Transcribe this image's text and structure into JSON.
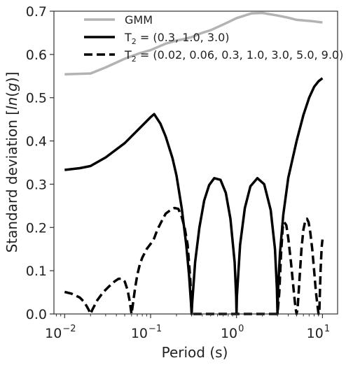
{
  "chart_data": {
    "type": "line",
    "xscale": "log",
    "xlabel": "Period (s)",
    "ylabel": "Standard deviation [ln(g)]",
    "xlim": [
      0.0075,
      15
    ],
    "ylim": [
      0,
      0.7
    ],
    "x_ticks": [
      {
        "value": 0.01,
        "mantissa": "10",
        "exp": "−2"
      },
      {
        "value": 0.1,
        "mantissa": "10",
        "exp": "−1"
      },
      {
        "value": 1,
        "mantissa": "10",
        "exp": "0"
      },
      {
        "value": 10,
        "mantissa": "10",
        "exp": "1"
      }
    ],
    "y_ticks": [
      "0.0",
      "0.1",
      "0.2",
      "0.3",
      "0.4",
      "0.5",
      "0.6",
      "0.7"
    ],
    "grid": false,
    "legend_position": "top",
    "series": [
      {
        "name": "GMM",
        "color": "#b3b3b3",
        "dash": "solid",
        "x": [
          0.01,
          0.02,
          0.03,
          0.05,
          0.075,
          0.1,
          0.15,
          0.2,
          0.25,
          0.3,
          0.4,
          0.5,
          0.75,
          1.0,
          1.5,
          2.0,
          3.0,
          4.0,
          5.0,
          7.5,
          10.0
        ],
        "y": [
          0.554,
          0.556,
          0.57,
          0.59,
          0.603,
          0.61,
          0.625,
          0.632,
          0.636,
          0.64,
          0.65,
          0.656,
          0.672,
          0.684,
          0.695,
          0.696,
          0.69,
          0.685,
          0.68,
          0.677,
          0.674
        ]
      },
      {
        "name": "T2 = (0.3, 1.0, 3.0)",
        "color": "#000000",
        "dash": "solid",
        "x": [
          0.01,
          0.015,
          0.02,
          0.03,
          0.05,
          0.075,
          0.1,
          0.11,
          0.13,
          0.15,
          0.18,
          0.2,
          0.23,
          0.26,
          0.28,
          0.295,
          0.3,
          0.305,
          0.33,
          0.37,
          0.42,
          0.48,
          0.55,
          0.65,
          0.75,
          0.85,
          0.95,
          0.99,
          1.0,
          1.01,
          1.1,
          1.25,
          1.45,
          1.75,
          2.1,
          2.5,
          2.8,
          2.95,
          3.0,
          3.05,
          3.2,
          3.5,
          4.0,
          5.0,
          6.0,
          7.0,
          8.0,
          9.0,
          10.0
        ],
        "y": [
          0.333,
          0.337,
          0.342,
          0.362,
          0.395,
          0.43,
          0.455,
          0.462,
          0.44,
          0.41,
          0.36,
          0.32,
          0.245,
          0.16,
          0.09,
          0.025,
          0.0,
          0.025,
          0.12,
          0.2,
          0.262,
          0.298,
          0.314,
          0.31,
          0.28,
          0.22,
          0.12,
          0.04,
          0.0,
          0.04,
          0.16,
          0.245,
          0.295,
          0.314,
          0.3,
          0.24,
          0.15,
          0.06,
          0.0,
          0.06,
          0.14,
          0.23,
          0.315,
          0.4,
          0.46,
          0.5,
          0.525,
          0.538,
          0.545
        ]
      },
      {
        "name": "T2 = (0.02, 0.06, 0.3, 1.0, 3.0, 5.0, 9.0)",
        "color": "#000000",
        "dash": "dashed",
        "x": [
          0.01,
          0.012,
          0.015,
          0.017,
          0.019,
          0.02,
          0.021,
          0.024,
          0.028,
          0.033,
          0.038,
          0.042,
          0.046,
          0.05,
          0.054,
          0.057,
          0.059,
          0.06,
          0.061,
          0.063,
          0.066,
          0.07,
          0.075,
          0.08,
          0.09,
          0.1,
          0.11,
          0.12,
          0.135,
          0.15,
          0.17,
          0.19,
          0.21,
          0.23,
          0.25,
          0.27,
          0.29,
          0.3,
          0.31,
          0.33,
          0.36,
          0.4,
          0.45,
          0.5,
          0.55,
          0.6,
          0.65,
          0.7,
          0.75,
          0.8,
          0.85,
          0.9,
          0.95,
          1.0,
          1.05,
          1.1,
          1.2,
          1.3,
          1.45,
          1.6,
          1.75,
          1.9,
          2.05,
          2.2,
          2.35,
          2.5,
          2.7,
          2.9,
          3.0,
          3.15,
          3.3,
          3.45,
          3.6,
          3.8,
          4.0,
          4.3,
          4.6,
          4.85,
          5.0,
          5.15,
          5.4,
          5.7,
          6.0,
          6.3,
          6.6,
          6.9,
          7.2,
          7.6,
          8.0,
          8.4,
          8.8,
          9.0,
          9.2,
          9.5,
          9.8,
          10.0
        ],
        "y": [
          0.051,
          0.047,
          0.038,
          0.027,
          0.01,
          0.0,
          0.01,
          0.032,
          0.05,
          0.064,
          0.075,
          0.081,
          0.082,
          0.075,
          0.055,
          0.03,
          0.01,
          0.0,
          0.01,
          0.03,
          0.06,
          0.09,
          0.115,
          0.13,
          0.15,
          0.162,
          0.175,
          0.195,
          0.215,
          0.232,
          0.24,
          0.245,
          0.243,
          0.225,
          0.198,
          0.16,
          0.08,
          0.0,
          0.0,
          0.0,
          0.0,
          0.0,
          0.0,
          0.0,
          0.0,
          0.0,
          0.0,
          0.0,
          0.0,
          0.0,
          0.0,
          0.0,
          0.0,
          0.0,
          0.0,
          0.0,
          0.0,
          0.0,
          0.0,
          0.0,
          0.0,
          0.0,
          0.0,
          0.0,
          0.0,
          0.0,
          0.0,
          0.0,
          0.0,
          0.05,
          0.14,
          0.2,
          0.212,
          0.205,
          0.175,
          0.12,
          0.06,
          0.015,
          0.0,
          0.015,
          0.08,
          0.15,
          0.195,
          0.215,
          0.22,
          0.212,
          0.19,
          0.15,
          0.1,
          0.05,
          0.015,
          0.0,
          0.01,
          0.1,
          0.155,
          0.172
        ]
      }
    ]
  }
}
